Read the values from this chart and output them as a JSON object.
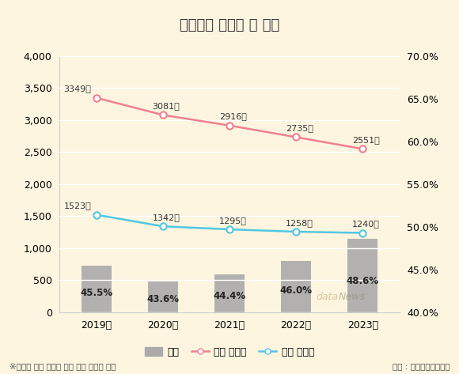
{
  "title": "교통사고 사망자 수 추이",
  "years": [
    "2019년",
    "2020년",
    "2021년",
    "2022년",
    "2023년"
  ],
  "total_deaths": [
    3349,
    3081,
    2916,
    2735,
    2551
  ],
  "elderly_deaths": [
    1523,
    1342,
    1295,
    1258,
    1240
  ],
  "ratio": [
    45.5,
    43.6,
    44.4,
    46.0,
    48.6
  ],
  "total_labels": [
    "3349명",
    "3081명",
    "2916명",
    "2735명",
    "2551명"
  ],
  "elderly_labels": [
    "1523명",
    "1342명",
    "1295명",
    "1258명",
    "1240명"
  ],
  "ratio_labels": [
    "45.5%",
    "43.6%",
    "44.4%",
    "46.0%",
    "48.6%"
  ],
  "bar_color": "#aaaaaa",
  "total_line_color": "#f08090",
  "elderly_line_color": "#50c8e0",
  "background_color": "#fdf5e0",
  "title_bg_color": "#f0c84a",
  "ylim_left": [
    0,
    4000
  ],
  "ylim_right": [
    40.0,
    70.0
  ],
  "yticks_left": [
    0,
    500,
    1000,
    1500,
    2000,
    2500,
    3000,
    3500,
    4000
  ],
  "yticks_right": [
    40.0,
    45.0,
    50.0,
    55.0,
    60.0,
    65.0,
    70.0
  ],
  "footnote": "※비중은 전체 사망자 대비 고령 사망자 비중",
  "source": "자료 : 한국도로교통공단",
  "legend_labels": [
    "비중",
    "전체 사망자",
    "고령 사망자"
  ],
  "datanews_text": "dataNews"
}
